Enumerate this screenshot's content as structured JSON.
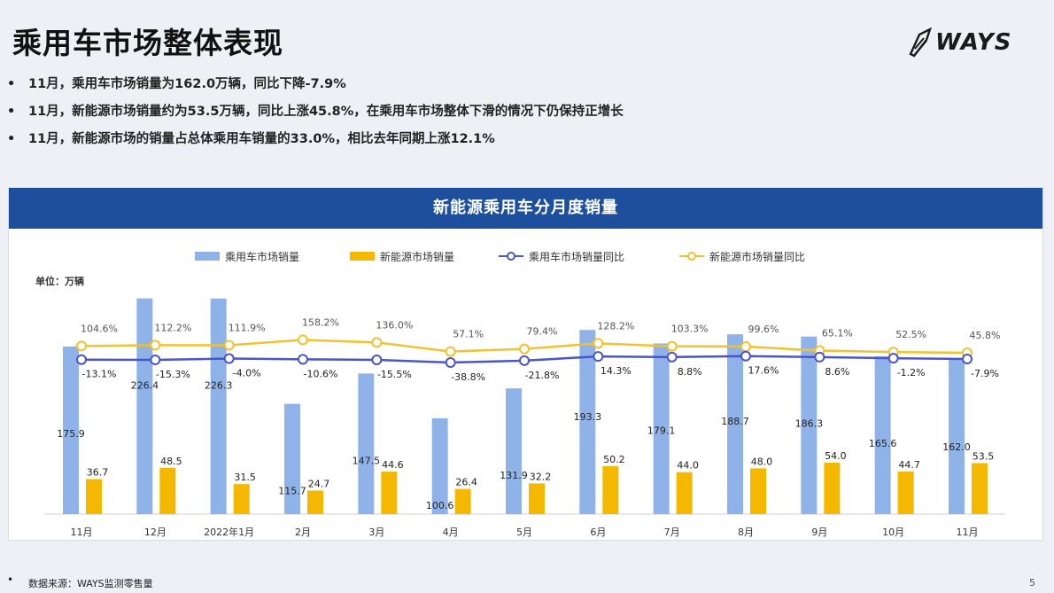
{
  "page": {
    "title": "乘用车市场整体表现",
    "logo_text": "WAYS",
    "bullets": [
      "11月，乘用车市场销量为162.0万辆，同比下降-7.9%",
      "11月，新能源市场销量约为53.5万辆，同比上涨45.8%，在乘用车市场整体下滑的情况下仍保持正增长",
      "11月，新能源市场的销量占总体乘用车销量的33.0%，相比去年同期上涨12.1%"
    ],
    "bullet_symbol": "•",
    "footer": "数据来源：WAYS监测零售量",
    "page_number": "5"
  },
  "chart_data": {
    "type": "bar",
    "title": "新能源乘用车分月度销量",
    "unit_label": "单位：万辆",
    "categories": [
      "11月",
      "12月",
      "2022年1月",
      "2月",
      "3月",
      "4月",
      "5月",
      "6月",
      "7月",
      "8月",
      "9月",
      "10月",
      "11月"
    ],
    "series": [
      {
        "name": "乘用车市场销量",
        "type": "bar",
        "color": "#8fb3e8",
        "values": [
          175.9,
          226.4,
          226.3,
          115.7,
          147.5,
          100.6,
          131.9,
          193.3,
          179.1,
          188.7,
          186.3,
          165.6,
          162.0
        ],
        "labels": [
          "175.9",
          "226.4",
          "226.3",
          "115.7",
          "147.5",
          "100.6",
          "131.9",
          "193.3",
          "179.1",
          "188.7",
          "186.3",
          "165.6",
          "162.0"
        ]
      },
      {
        "name": "新能源市场销量",
        "type": "bar",
        "color": "#f5b800",
        "values": [
          36.7,
          48.5,
          31.5,
          24.7,
          44.6,
          26.4,
          32.2,
          50.2,
          44.0,
          48.0,
          54.0,
          44.7,
          53.5
        ],
        "labels": [
          "36.7",
          "48.5",
          "31.5",
          "24.7",
          "44.6",
          "26.4",
          "32.2",
          "50.2",
          "44.0",
          "48.0",
          "54.0",
          "44.7",
          "53.5"
        ]
      },
      {
        "name": "乘用车市场销量同比",
        "type": "line",
        "color": "#4a55c8",
        "values": [
          -13.1,
          -15.3,
          -4.0,
          -10.6,
          -15.5,
          -38.8,
          -21.8,
          14.3,
          8.8,
          17.6,
          8.6,
          -1.2,
          -7.9
        ],
        "labels": [
          "-13.1%",
          "-15.3%",
          "-4.0%",
          "-10.6%",
          "-15.5%",
          "-38.8%",
          "-21.8%",
          "14.3%",
          "8.8%",
          "17.6%",
          "8.6%",
          "-1.2%",
          "-7.9%"
        ]
      },
      {
        "name": "新能源市场销量同比",
        "type": "line",
        "color": "#f2c12e",
        "values": [
          104.6,
          112.2,
          111.9,
          158.2,
          136.0,
          57.1,
          79.4,
          128.2,
          103.3,
          99.6,
          65.1,
          52.5,
          45.8
        ],
        "labels": [
          "104.6%",
          "112.2%",
          "111.9%",
          "158.2%",
          "136.0%",
          "57.1%",
          "79.4%",
          "128.2%",
          "103.3%",
          "99.6%",
          "65.1%",
          "52.5%",
          "45.8%"
        ]
      }
    ],
    "legend_position": "top",
    "grid": false,
    "ylim_bar": [
      0,
      240
    ]
  }
}
